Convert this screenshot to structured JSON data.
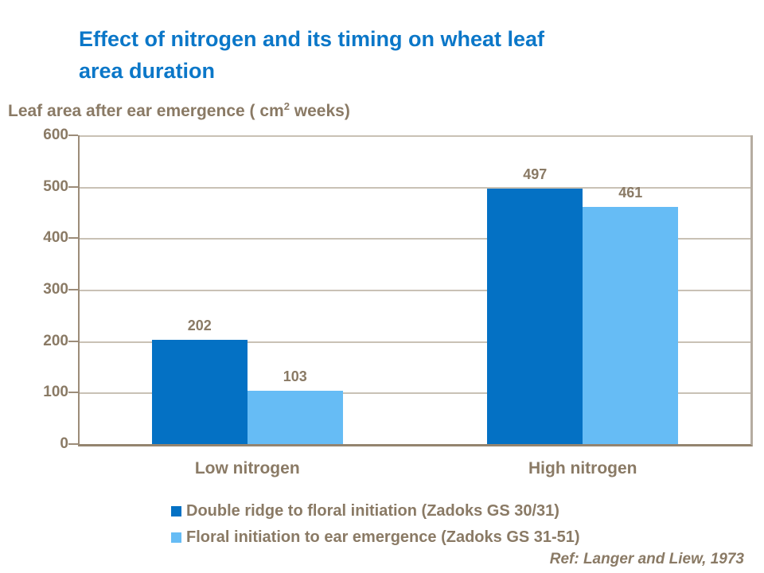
{
  "title": {
    "line1": "Effect of nitrogen and its timing on wheat leaf",
    "line2": "area duration",
    "color": "#0B77C8"
  },
  "subtitle": {
    "prefix": "Leaf area after ear emergence ( cm",
    "superscript": "2",
    "suffix": " weeks)"
  },
  "chart_data": {
    "type": "bar",
    "title": "Effect of nitrogen and its timing on wheat leaf area duration",
    "ylabel": "Leaf area after ear emergence ( cm2 weeks)",
    "xlabel": "",
    "categories": [
      "Low nitrogen",
      "High nitrogen"
    ],
    "series": [
      {
        "name": "Double ridge to floral initiation (Zadoks GS 30/31)",
        "color": "#0471C4",
        "values": [
          202,
          497
        ]
      },
      {
        "name": "Floral initiation to ear emergence (Zadoks GS 31-51)",
        "color": "#66BCF5",
        "values": [
          103,
          461
        ]
      }
    ],
    "ylim": [
      0,
      600
    ],
    "y_tick_step": 100,
    "y_ticks": [
      "600",
      "500",
      "400",
      "300",
      "200",
      "100",
      "0"
    ],
    "grid": "horizontal gridlines at every 100 plus top line at 600",
    "legend_position": "bottom-left",
    "value_labels": [
      202,
      103,
      497,
      461
    ]
  },
  "footnote": {
    "text": "Ref: Langer and Liew, 1973"
  },
  "colors": {
    "title_blue": "#0B77C8",
    "text_brown": "#8A7A65",
    "axis_brown": "#9C8C79",
    "gridline": "#C9C1B5",
    "plot_right_border": "#B5ACA1",
    "background": "#FFFFFF"
  }
}
